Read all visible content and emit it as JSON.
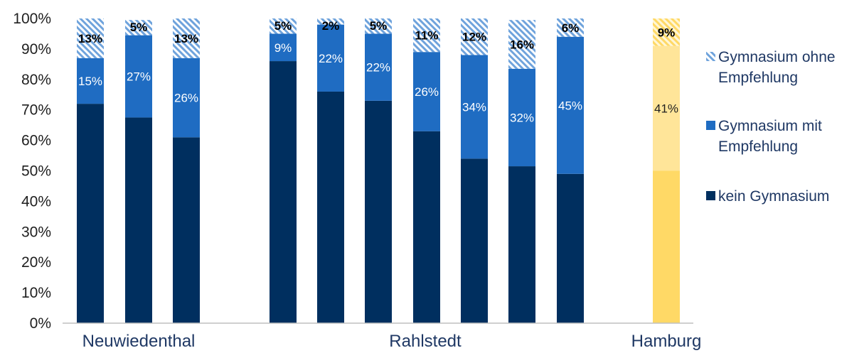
{
  "chart_data": {
    "type": "bar",
    "stacked": true,
    "yaxis": {
      "min": 0,
      "max": 100,
      "ticks": [
        "0%",
        "10%",
        "20%",
        "30%",
        "40%",
        "50%",
        "60%",
        "70%",
        "80%",
        "90%",
        "100%"
      ]
    },
    "groups": [
      {
        "label": "Neuwiedenthal",
        "bars": [
          0,
          1,
          2
        ]
      },
      {
        "label": "Rahlstedt",
        "bars": [
          3,
          4,
          5,
          6,
          7,
          8,
          9
        ]
      },
      {
        "label": "Hamburg",
        "bars": [
          10
        ]
      }
    ],
    "series": [
      {
        "name": "kein Gymnasium",
        "color": "#002f5f"
      },
      {
        "name": "Gymnasium mit Empfehlung",
        "color": "#1f6cc2"
      },
      {
        "name": "Gymnasium ohne Empfehlung",
        "color": "#a6c8ec",
        "pattern": "hatch"
      }
    ],
    "bars": [
      {
        "values": [
          72,
          15,
          13
        ],
        "labels": [
          "",
          "15%",
          "13%"
        ]
      },
      {
        "values": [
          67.5,
          27,
          5
        ],
        "labels": [
          "",
          "27%",
          "5%"
        ]
      },
      {
        "values": [
          61,
          26,
          13
        ],
        "labels": [
          "",
          "26%",
          "13%"
        ]
      },
      {
        "values": [
          86,
          9,
          5
        ],
        "labels": [
          "",
          "9%",
          "5%"
        ]
      },
      {
        "values": [
          76,
          22,
          2
        ],
        "labels": [
          "",
          "22%",
          "2%"
        ]
      },
      {
        "values": [
          73,
          22,
          5
        ],
        "labels": [
          "",
          "22%",
          "5%"
        ]
      },
      {
        "values": [
          63,
          26,
          11
        ],
        "labels": [
          "",
          "26%",
          "11%"
        ]
      },
      {
        "values": [
          54,
          34,
          12
        ],
        "labels": [
          "",
          "34%",
          "12%"
        ]
      },
      {
        "values": [
          51.5,
          32,
          16
        ],
        "labels": [
          "",
          "32%",
          "16%"
        ]
      },
      {
        "values": [
          49,
          45,
          6
        ],
        "labels": [
          "",
          "45%",
          "6%"
        ]
      },
      {
        "values": [
          50,
          41,
          9
        ],
        "labels": [
          "",
          "41%",
          "9%"
        ],
        "colors": [
          "#ffd966",
          "#ffe599",
          "#ffd966"
        ]
      }
    ],
    "legend": {
      "placement": "right",
      "items": [
        {
          "text": [
            "Gymnasium ohne",
            "Empfehlung"
          ],
          "series": 2
        },
        {
          "text": [
            "Gymnasium mit",
            "Empfehlung"
          ],
          "series": 1
        },
        {
          "text": [
            "kein Gymnasium"
          ],
          "series": 0
        }
      ]
    }
  }
}
